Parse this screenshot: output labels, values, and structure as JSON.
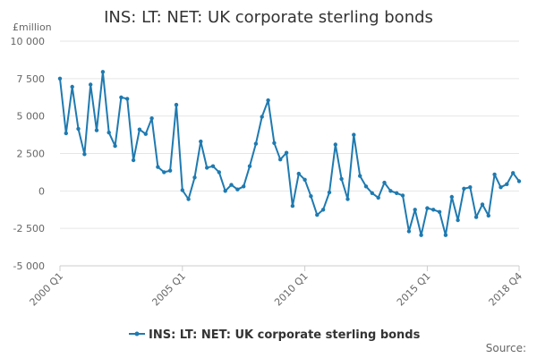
{
  "chart_data": {
    "type": "line",
    "title": "INS: LT: NET: UK corporate sterling bonds",
    "ylabel": "£million",
    "xlabel": "",
    "ylim": [
      -5000,
      10000
    ],
    "yticks": [
      {
        "value": 10000,
        "label": "10 000"
      },
      {
        "value": 7500,
        "label": "7 500"
      },
      {
        "value": 5000,
        "label": "5 000"
      },
      {
        "value": 2500,
        "label": "2 500"
      },
      {
        "value": 0,
        "label": "0"
      },
      {
        "value": -2500,
        "label": "-2 500"
      },
      {
        "value": -5000,
        "label": "-5 000"
      }
    ],
    "xticks": [
      {
        "index": 0,
        "label": "2000 Q1"
      },
      {
        "index": 20,
        "label": "2005 Q1"
      },
      {
        "index": 40,
        "label": "2010 Q1"
      },
      {
        "index": 60,
        "label": "2015 Q1"
      },
      {
        "index": 75,
        "label": "2018 Q4"
      }
    ],
    "grid": "horizontal",
    "legend": "bottom",
    "series_color": "#1f7ab0",
    "series": [
      {
        "name": "INS: LT: NET: UK corporate sterling bonds",
        "x": [
          "2000 Q1",
          "2000 Q2",
          "2000 Q3",
          "2000 Q4",
          "2001 Q1",
          "2001 Q2",
          "2001 Q3",
          "2001 Q4",
          "2002 Q1",
          "2002 Q2",
          "2002 Q3",
          "2002 Q4",
          "2003 Q1",
          "2003 Q2",
          "2003 Q3",
          "2003 Q4",
          "2004 Q1",
          "2004 Q2",
          "2004 Q3",
          "2004 Q4",
          "2005 Q1",
          "2005 Q2",
          "2005 Q3",
          "2005 Q4",
          "2006 Q1",
          "2006 Q2",
          "2006 Q3",
          "2006 Q4",
          "2007 Q1",
          "2007 Q2",
          "2007 Q3",
          "2007 Q4",
          "2008 Q1",
          "2008 Q2",
          "2008 Q3",
          "2008 Q4",
          "2009 Q1",
          "2009 Q2",
          "2009 Q3",
          "2009 Q4",
          "2010 Q1",
          "2010 Q2",
          "2010 Q3",
          "2010 Q4",
          "2011 Q1",
          "2011 Q2",
          "2011 Q3",
          "2011 Q4",
          "2012 Q1",
          "2012 Q2",
          "2012 Q3",
          "2012 Q4",
          "2013 Q1",
          "2013 Q2",
          "2013 Q3",
          "2013 Q4",
          "2014 Q1",
          "2014 Q2",
          "2014 Q3",
          "2014 Q4",
          "2015 Q1",
          "2015 Q2",
          "2015 Q3",
          "2015 Q4",
          "2016 Q1",
          "2016 Q2",
          "2016 Q3",
          "2016 Q4",
          "2017 Q1",
          "2017 Q2",
          "2017 Q3",
          "2017 Q4",
          "2018 Q1",
          "2018 Q2",
          "2018 Q3",
          "2018 Q4"
        ],
        "values": [
          7500,
          3850,
          6950,
          4150,
          2450,
          7100,
          4050,
          7950,
          3900,
          3000,
          6250,
          6150,
          2050,
          4100,
          3800,
          4850,
          1600,
          1250,
          1350,
          5750,
          50,
          -550,
          900,
          3300,
          1550,
          1650,
          1250,
          0,
          400,
          100,
          300,
          1650,
          3150,
          4950,
          6050,
          3200,
          2100,
          2550,
          -1000,
          1150,
          750,
          -350,
          -1600,
          -1250,
          -100,
          3100,
          800,
          -550,
          3750,
          1000,
          300,
          -150,
          -450,
          550,
          0,
          -150,
          -300,
          -2700,
          -1250,
          -2950,
          -1150,
          -1250,
          -1400,
          -2950,
          -400,
          -1950,
          150,
          250,
          -1750,
          -900,
          -1650,
          1100,
          250,
          450,
          1200,
          650
        ]
      }
    ],
    "source_label": "Source:"
  }
}
